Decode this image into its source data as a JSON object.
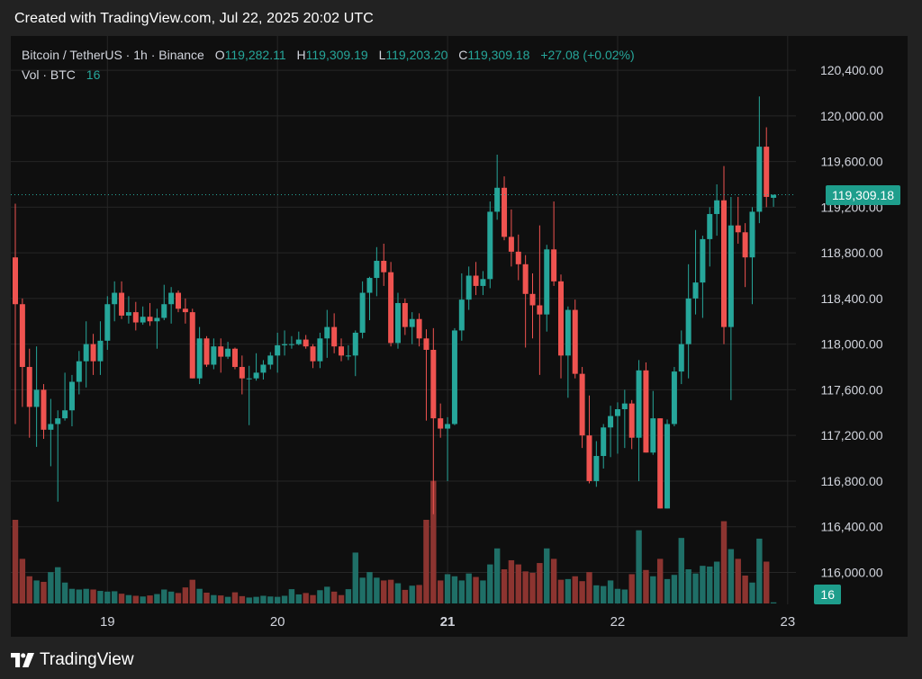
{
  "header": {
    "caption": "Created with TradingView.com, Jul 22, 2025 20:02 UTC"
  },
  "legend": {
    "symbol": "Bitcoin / TetherUS · 1h · Binance",
    "o_label": "O",
    "o_value": "119,282.11",
    "h_label": "H",
    "h_value": "119,309.19",
    "l_label": "L",
    "l_value": "119,203.20",
    "c_label": "C",
    "c_value": "119,309.18",
    "change": "+27.08 (+0.02%)",
    "vol_label": "Vol · BTC",
    "vol_value": "16"
  },
  "last_price_label": "119,309.18",
  "last_volume_label": "16",
  "footer": {
    "brand": "TradingView",
    "logo_icon": "tradingview-logo-icon"
  },
  "colors": {
    "up": "#26a69a",
    "down": "#ef5350",
    "vol_up": "#1f6f67",
    "vol_down": "#8c3430",
    "grid": "#262626",
    "axis_text": "#d1d4dc",
    "price_line": "#26a69a"
  },
  "chart_data": {
    "type": "candlestick",
    "title": "Bitcoin / TetherUS · 1h · Binance",
    "x_ticks": [
      {
        "label": "19",
        "index": 13
      },
      {
        "label": "20",
        "index": 37
      },
      {
        "label": "21",
        "index": 61
      },
      {
        "label": "22",
        "index": 85
      },
      {
        "label": "23",
        "index": 109
      }
    ],
    "y_ticks": [
      120400,
      120000,
      119600,
      119200,
      118800,
      118400,
      118000,
      117600,
      117200,
      116800,
      116400,
      116000
    ],
    "y_tick_labels": [
      "120,400.00",
      "120,000.00",
      "119,600.00",
      "119,200.00",
      "118,800.00",
      "118,400.00",
      "118,000.00",
      "117,600.00",
      "117,200.00",
      "116,800.00",
      "116,400.00",
      "116,000.00"
    ],
    "ylim": [
      115720,
      120700
    ],
    "last_price": 119309.18,
    "grid": true,
    "volume_max_btc": 2000,
    "candles": [
      {
        "o": 118760,
        "h": 119230,
        "l": 117300,
        "c": 118350,
        "v": 1200
      },
      {
        "o": 118350,
        "h": 118400,
        "l": 117450,
        "c": 117800,
        "v": 640
      },
      {
        "o": 117800,
        "h": 117960,
        "l": 117180,
        "c": 117450,
        "v": 390
      },
      {
        "o": 117450,
        "h": 117980,
        "l": 117100,
        "c": 117600,
        "v": 330
      },
      {
        "o": 117600,
        "h": 117650,
        "l": 117170,
        "c": 117250,
        "v": 310
      },
      {
        "o": 117250,
        "h": 117520,
        "l": 116930,
        "c": 117300,
        "v": 450
      },
      {
        "o": 117300,
        "h": 117420,
        "l": 116620,
        "c": 117350,
        "v": 520
      },
      {
        "o": 117350,
        "h": 117750,
        "l": 117330,
        "c": 117420,
        "v": 300
      },
      {
        "o": 117420,
        "h": 117730,
        "l": 117280,
        "c": 117670,
        "v": 210
      },
      {
        "o": 117670,
        "h": 117940,
        "l": 117560,
        "c": 117850,
        "v": 200
      },
      {
        "o": 117850,
        "h": 118200,
        "l": 117620,
        "c": 118000,
        "v": 210
      },
      {
        "o": 118000,
        "h": 118090,
        "l": 117730,
        "c": 117850,
        "v": 200
      },
      {
        "o": 117850,
        "h": 118200,
        "l": 117730,
        "c": 118030,
        "v": 180
      },
      {
        "o": 118030,
        "h": 118420,
        "l": 117950,
        "c": 118350,
        "v": 170
      },
      {
        "o": 118350,
        "h": 118550,
        "l": 118200,
        "c": 118450,
        "v": 175
      },
      {
        "o": 118450,
        "h": 118550,
        "l": 118220,
        "c": 118250,
        "v": 140
      },
      {
        "o": 118250,
        "h": 118420,
        "l": 118180,
        "c": 118280,
        "v": 120
      },
      {
        "o": 118280,
        "h": 118370,
        "l": 118120,
        "c": 118190,
        "v": 110
      },
      {
        "o": 118190,
        "h": 118330,
        "l": 118170,
        "c": 118240,
        "v": 100
      },
      {
        "o": 118240,
        "h": 118360,
        "l": 118160,
        "c": 118200,
        "v": 115
      },
      {
        "o": 118200,
        "h": 118310,
        "l": 117960,
        "c": 118230,
        "v": 135
      },
      {
        "o": 118230,
        "h": 118520,
        "l": 118210,
        "c": 118350,
        "v": 200
      },
      {
        "o": 118350,
        "h": 118500,
        "l": 118180,
        "c": 118450,
        "v": 170
      },
      {
        "o": 118450,
        "h": 118470,
        "l": 118280,
        "c": 118310,
        "v": 150
      },
      {
        "o": 118310,
        "h": 118400,
        "l": 118180,
        "c": 118280,
        "v": 230
      },
      {
        "o": 118280,
        "h": 118310,
        "l": 117700,
        "c": 117700,
        "v": 340
      },
      {
        "o": 117700,
        "h": 118150,
        "l": 117650,
        "c": 118050,
        "v": 210
      },
      {
        "o": 118050,
        "h": 118070,
        "l": 117800,
        "c": 117820,
        "v": 155
      },
      {
        "o": 117820,
        "h": 118050,
        "l": 117780,
        "c": 117980,
        "v": 120
      },
      {
        "o": 117980,
        "h": 118050,
        "l": 117750,
        "c": 117890,
        "v": 115
      },
      {
        "o": 117890,
        "h": 118020,
        "l": 117870,
        "c": 117960,
        "v": 95
      },
      {
        "o": 117960,
        "h": 117970,
        "l": 117780,
        "c": 117800,
        "v": 160
      },
      {
        "o": 117800,
        "h": 117900,
        "l": 117560,
        "c": 117700,
        "v": 105
      },
      {
        "o": 117700,
        "h": 117810,
        "l": 117290,
        "c": 117700,
        "v": 85
      },
      {
        "o": 117700,
        "h": 117920,
        "l": 117680,
        "c": 117750,
        "v": 95
      },
      {
        "o": 117750,
        "h": 117860,
        "l": 117690,
        "c": 117820,
        "v": 110
      },
      {
        "o": 117820,
        "h": 117930,
        "l": 117780,
        "c": 117900,
        "v": 100
      },
      {
        "o": 117900,
        "h": 118100,
        "l": 117750,
        "c": 117990,
        "v": 95
      },
      {
        "o": 117990,
        "h": 118120,
        "l": 117900,
        "c": 118000,
        "v": 110
      },
      {
        "o": 118000,
        "h": 118070,
        "l": 117960,
        "c": 118000,
        "v": 205
      },
      {
        "o": 118000,
        "h": 118110,
        "l": 117990,
        "c": 118040,
        "v": 130
      },
      {
        "o": 118040,
        "h": 118080,
        "l": 117960,
        "c": 117980,
        "v": 150
      },
      {
        "o": 117980,
        "h": 118000,
        "l": 117790,
        "c": 117850,
        "v": 120
      },
      {
        "o": 117850,
        "h": 118100,
        "l": 117790,
        "c": 118050,
        "v": 190
      },
      {
        "o": 118050,
        "h": 118300,
        "l": 117880,
        "c": 118150,
        "v": 240
      },
      {
        "o": 118150,
        "h": 118270,
        "l": 117920,
        "c": 117980,
        "v": 170
      },
      {
        "o": 117980,
        "h": 118050,
        "l": 117850,
        "c": 117900,
        "v": 120
      },
      {
        "o": 117900,
        "h": 117990,
        "l": 117860,
        "c": 117900,
        "v": 205
      },
      {
        "o": 117900,
        "h": 118120,
        "l": 117720,
        "c": 118100,
        "v": 730
      },
      {
        "o": 118100,
        "h": 118550,
        "l": 118050,
        "c": 118450,
        "v": 370
      },
      {
        "o": 118450,
        "h": 118590,
        "l": 118210,
        "c": 118580,
        "v": 450
      },
      {
        "o": 118580,
        "h": 118850,
        "l": 118420,
        "c": 118730,
        "v": 370
      },
      {
        "o": 118730,
        "h": 118880,
        "l": 118510,
        "c": 118630,
        "v": 330
      },
      {
        "o": 118630,
        "h": 118720,
        "l": 117980,
        "c": 118010,
        "v": 340
      },
      {
        "o": 118010,
        "h": 118450,
        "l": 117960,
        "c": 118360,
        "v": 290
      },
      {
        "o": 118360,
        "h": 118400,
        "l": 118080,
        "c": 118150,
        "v": 195
      },
      {
        "o": 118150,
        "h": 118280,
        "l": 118000,
        "c": 118220,
        "v": 255
      },
      {
        "o": 118220,
        "h": 118270,
        "l": 117980,
        "c": 118050,
        "v": 265
      },
      {
        "o": 118050,
        "h": 118130,
        "l": 117330,
        "c": 117950,
        "v": 1200
      },
      {
        "o": 117950,
        "h": 118140,
        "l": 116510,
        "c": 117350,
        "v": 1760
      },
      {
        "o": 117350,
        "h": 117480,
        "l": 117180,
        "c": 117260,
        "v": 330
      },
      {
        "o": 117260,
        "h": 117360,
        "l": 116800,
        "c": 117300,
        "v": 420
      },
      {
        "o": 117300,
        "h": 118140,
        "l": 117290,
        "c": 118120,
        "v": 390
      },
      {
        "o": 118120,
        "h": 118620,
        "l": 118030,
        "c": 118390,
        "v": 330
      },
      {
        "o": 118390,
        "h": 118680,
        "l": 118300,
        "c": 118600,
        "v": 430
      },
      {
        "o": 118600,
        "h": 118720,
        "l": 118430,
        "c": 118510,
        "v": 380
      },
      {
        "o": 118510,
        "h": 118640,
        "l": 118430,
        "c": 118570,
        "v": 330
      },
      {
        "o": 118570,
        "h": 119250,
        "l": 118490,
        "c": 119160,
        "v": 560
      },
      {
        "o": 119160,
        "h": 119660,
        "l": 119090,
        "c": 119370,
        "v": 790
      },
      {
        "o": 119370,
        "h": 119470,
        "l": 118910,
        "c": 118940,
        "v": 490
      },
      {
        "o": 118940,
        "h": 119180,
        "l": 118680,
        "c": 118810,
        "v": 620
      },
      {
        "o": 118810,
        "h": 118960,
        "l": 118560,
        "c": 118700,
        "v": 560
      },
      {
        "o": 118700,
        "h": 118780,
        "l": 117970,
        "c": 118440,
        "v": 460
      },
      {
        "o": 118440,
        "h": 118620,
        "l": 118050,
        "c": 118340,
        "v": 440
      },
      {
        "o": 118340,
        "h": 119040,
        "l": 117730,
        "c": 118260,
        "v": 580
      },
      {
        "o": 118260,
        "h": 118870,
        "l": 118110,
        "c": 118830,
        "v": 790
      },
      {
        "o": 118830,
        "h": 119250,
        "l": 118510,
        "c": 118550,
        "v": 640
      },
      {
        "o": 118550,
        "h": 118610,
        "l": 117700,
        "c": 117900,
        "v": 340
      },
      {
        "o": 117900,
        "h": 118330,
        "l": 117530,
        "c": 118300,
        "v": 350
      },
      {
        "o": 118300,
        "h": 118390,
        "l": 117700,
        "c": 117740,
        "v": 390
      },
      {
        "o": 117740,
        "h": 117800,
        "l": 117090,
        "c": 117200,
        "v": 320
      },
      {
        "o": 117200,
        "h": 117550,
        "l": 116780,
        "c": 116800,
        "v": 450
      },
      {
        "o": 116800,
        "h": 117150,
        "l": 116750,
        "c": 117020,
        "v": 260
      },
      {
        "o": 117020,
        "h": 117300,
        "l": 116910,
        "c": 117270,
        "v": 250
      },
      {
        "o": 117270,
        "h": 117460,
        "l": 117010,
        "c": 117370,
        "v": 330
      },
      {
        "o": 117370,
        "h": 117490,
        "l": 117040,
        "c": 117430,
        "v": 210
      },
      {
        "o": 117430,
        "h": 117600,
        "l": 117090,
        "c": 117480,
        "v": 200
      },
      {
        "o": 117480,
        "h": 117510,
        "l": 117080,
        "c": 117180,
        "v": 420
      },
      {
        "o": 117180,
        "h": 117860,
        "l": 116800,
        "c": 117770,
        "v": 1050
      },
      {
        "o": 117770,
        "h": 117840,
        "l": 117050,
        "c": 117050,
        "v": 480
      },
      {
        "o": 117050,
        "h": 117590,
        "l": 117030,
        "c": 117350,
        "v": 390
      },
      {
        "o": 117350,
        "h": 117350,
        "l": 116560,
        "c": 116560,
        "v": 640
      },
      {
        "o": 116560,
        "h": 117340,
        "l": 116560,
        "c": 117300,
        "v": 350
      },
      {
        "o": 117300,
        "h": 117800,
        "l": 117280,
        "c": 117760,
        "v": 410
      },
      {
        "o": 117760,
        "h": 118120,
        "l": 117650,
        "c": 118000,
        "v": 940
      },
      {
        "o": 118000,
        "h": 118700,
        "l": 117700,
        "c": 118400,
        "v": 490
      },
      {
        "o": 118400,
        "h": 119000,
        "l": 118260,
        "c": 118540,
        "v": 430
      },
      {
        "o": 118540,
        "h": 118950,
        "l": 118230,
        "c": 118920,
        "v": 540
      },
      {
        "o": 118920,
        "h": 119200,
        "l": 118680,
        "c": 119140,
        "v": 530
      },
      {
        "o": 119140,
        "h": 119400,
        "l": 118950,
        "c": 119260,
        "v": 600
      },
      {
        "o": 119260,
        "h": 119560,
        "l": 118000,
        "c": 118150,
        "v": 1180
      },
      {
        "o": 118150,
        "h": 119290,
        "l": 117510,
        "c": 119040,
        "v": 780
      },
      {
        "o": 119040,
        "h": 119290,
        "l": 118880,
        "c": 118980,
        "v": 640
      },
      {
        "o": 118980,
        "h": 119060,
        "l": 118500,
        "c": 118760,
        "v": 400
      },
      {
        "o": 118760,
        "h": 119200,
        "l": 118350,
        "c": 119160,
        "v": 300
      },
      {
        "o": 119160,
        "h": 120170,
        "l": 119060,
        "c": 119730,
        "v": 930
      },
      {
        "o": 119730,
        "h": 119900,
        "l": 119200,
        "c": 119290,
        "v": 600
      },
      {
        "o": 119282.11,
        "h": 119309.19,
        "l": 119203.2,
        "c": 119309.18,
        "v": 16
      }
    ]
  }
}
